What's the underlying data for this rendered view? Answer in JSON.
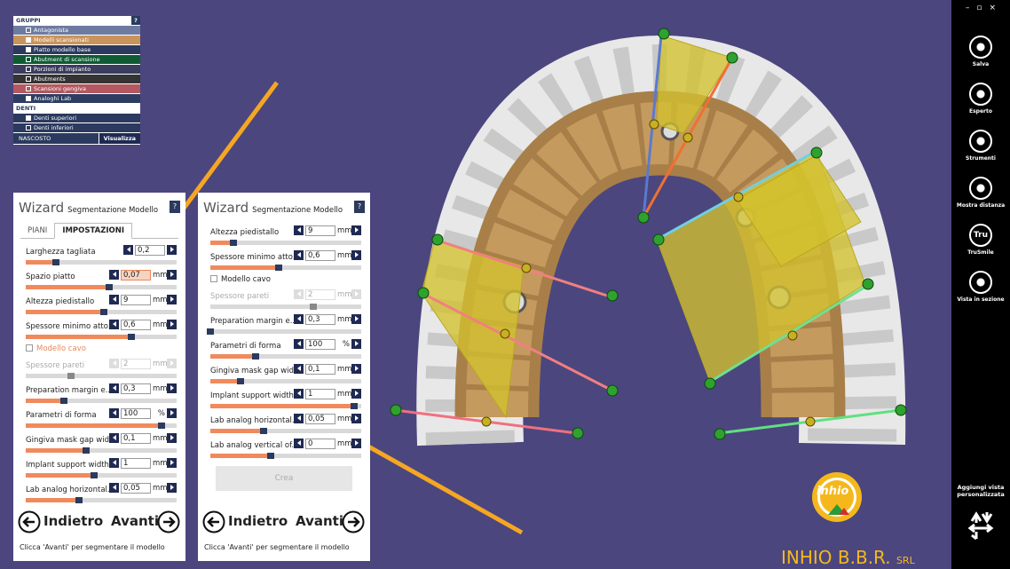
{
  "groups": {
    "title": "GRUPPI",
    "help": "?",
    "items": [
      {
        "label": "Antagonista",
        "checked": false,
        "color": "#6e7ba0"
      },
      {
        "label": "Modelli scansionati",
        "checked": true,
        "color": "#c9945c"
      },
      {
        "label": "Piatto modello base",
        "checked": true,
        "color": "#2b3a5e"
      },
      {
        "label": "Abutment di scansione",
        "checked": false,
        "color": "#0f5c34"
      },
      {
        "label": "Porzioni di impianto",
        "checked": false,
        "color": "#3b3d5e"
      },
      {
        "label": "Abutments",
        "checked": false,
        "color": "#343434"
      },
      {
        "label": "Scansioni gengiva",
        "checked": false,
        "color": "#b35860"
      },
      {
        "label": "Analoghi Lab",
        "checked": true,
        "color": "#2d3d62"
      }
    ],
    "teeth_title": "DENTI",
    "teeth": [
      {
        "label": "Denti superiori",
        "checked": true
      },
      {
        "label": "Denti inferiori",
        "checked": false
      }
    ],
    "hidden_title": "NASCOSTO",
    "show_button": "Visualizza"
  },
  "wizards": [
    {
      "title": "Wizard",
      "subtitle": "Segmentazione Modello",
      "help": "?",
      "tabs": [
        "PIANI",
        "IMPOSTAZIONI"
      ],
      "fields": [
        {
          "label": "Larghezza tagliata",
          "value": "0,2"
        },
        {
          "label": "Spazio piatto",
          "value": "0,07",
          "unit": "mm",
          "selected": true
        },
        {
          "label": "Altezza piedistallo",
          "value": "9",
          "unit": "mm"
        },
        {
          "label": "Spessore minimo atto...",
          "value": "0,6",
          "unit": "mm"
        },
        {
          "label": "Modello cavo",
          "checkbox": true,
          "color": "#e8875a"
        },
        {
          "label": "Spessore pareti",
          "value": "2",
          "unit": "mm",
          "disabled": true
        },
        {
          "label": "Preparation margin e...",
          "value": "0,3",
          "unit": "mm"
        },
        {
          "label": "Parametri di forma",
          "value": "100",
          "unit": "%"
        },
        {
          "label": "Gingiva mask gap wid...",
          "value": "0,1",
          "unit": "mm"
        },
        {
          "label": "Implant support width",
          "value": "1",
          "unit": "mm"
        },
        {
          "label": "Lab analog horizontal...",
          "value": "0,05",
          "unit": "mm"
        }
      ],
      "back": "Indietro",
      "next": "Avanti",
      "hint": "Clicca 'Avanti' per segmentare il modello"
    },
    {
      "title": "Wizard",
      "subtitle": "Segmentazione Modello",
      "help": "?",
      "fields": [
        {
          "label": "Altezza piedistallo",
          "value": "9",
          "unit": "mm"
        },
        {
          "label": "Spessore minimo atto...",
          "value": "0,6",
          "unit": "mm"
        },
        {
          "label": "Modello cavo",
          "checkbox": true,
          "color": "#222222"
        },
        {
          "label": "Spessore pareti",
          "value": "2",
          "unit": "mm",
          "disabled": true
        },
        {
          "label": "Preparation margin e...",
          "value": "0,3",
          "unit": "mm"
        },
        {
          "label": "Parametri di forma",
          "value": "100",
          "unit": "%"
        },
        {
          "label": "Gingiva mask gap wid...",
          "value": "0,1",
          "unit": "mm"
        },
        {
          "label": "Implant support width",
          "value": "1",
          "unit": "mm"
        },
        {
          "label": "Lab analog horizontal...",
          "value": "0,05",
          "unit": "mm"
        },
        {
          "label": "Lab analog vertical of...",
          "value": "0",
          "unit": "mm"
        }
      ],
      "create": "Crea",
      "back": "Indietro",
      "next": "Avanti",
      "hint": "Clicca 'Avanti' per segmentare il modello"
    }
  ],
  "toolbar": [
    {
      "label": "Salva"
    },
    {
      "label": "Esperto"
    },
    {
      "label": "Strumenti"
    },
    {
      "label": "Mostra distanza"
    },
    {
      "label": "TruSmile",
      "icon": "Tru"
    },
    {
      "label": "Vista in sezione"
    }
  ],
  "custom_view": "Aggiungi vista personalizzata",
  "logo": {
    "mark": "inhio",
    "name": "INHIO B.B.R.",
    "suffix": "SRL"
  }
}
